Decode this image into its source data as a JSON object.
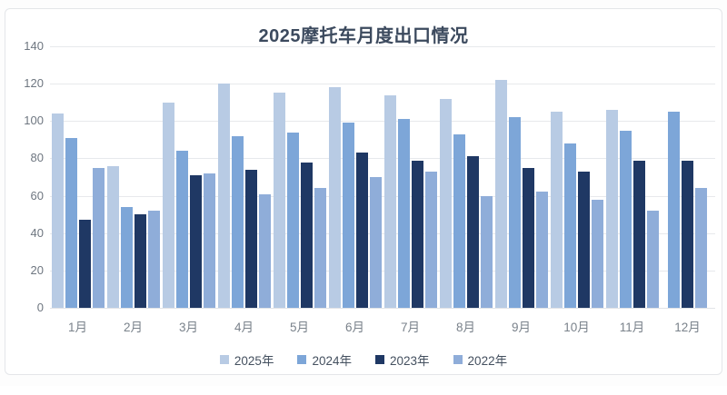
{
  "chart_data": {
    "type": "bar",
    "title": "2025摩托车月度出口情况",
    "categories": [
      "1月",
      "2月",
      "3月",
      "4月",
      "5月",
      "6月",
      "7月",
      "8月",
      "9月",
      "10月",
      "11月",
      "12月"
    ],
    "series": [
      {
        "name": "2025年",
        "color": "#b8cbe4",
        "values": [
          104,
          76,
          110,
          120,
          115,
          118,
          114,
          112,
          122,
          105,
          106,
          null
        ]
      },
      {
        "name": "2024年",
        "color": "#7da6d8",
        "values": [
          91,
          54,
          84,
          92,
          94,
          99,
          101,
          93,
          102,
          88,
          95,
          105
        ]
      },
      {
        "name": "2023年",
        "color": "#1f3864",
        "values": [
          47,
          50,
          71,
          74,
          78,
          83,
          79,
          81,
          75,
          73,
          79,
          79
        ]
      },
      {
        "name": "2022年",
        "color": "#8fadd9",
        "values": [
          75,
          52,
          72,
          61,
          64,
          70,
          73,
          60,
          62,
          58,
          52,
          64
        ]
      }
    ],
    "ylim": [
      0,
      140
    ],
    "yticks": [
      0,
      20,
      40,
      60,
      80,
      100,
      120,
      140
    ],
    "xlabel": "",
    "ylabel": "",
    "grid": true,
    "legend_position": "bottom"
  },
  "layout_text": {
    "note": ""
  }
}
